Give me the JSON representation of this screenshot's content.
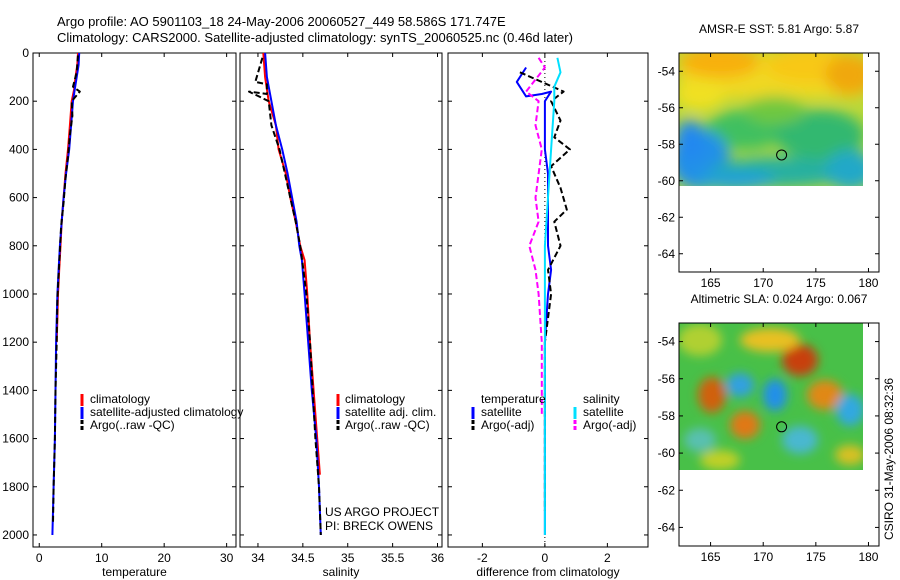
{
  "header": {
    "line1": "Argo profile: AO 5901103_18 24-May-2006 20060527_449 58.586S 171.747E",
    "line2": "Climatology: CARS2000. Satellite-adjusted climatology: synTS_20060525.nc (0.46d later)"
  },
  "credit": "CSIRO 31-May-2006 08:32:36",
  "colors": {
    "climatology": "#ff0000",
    "satellite": "#0000ff",
    "argo": "#000000",
    "salinity_satellite": "#00e0ff",
    "salinity_argo": "#ff00ff"
  },
  "chart_data": [
    {
      "type": "line",
      "panel": "temperature",
      "xlabel": "temperature",
      "ylabel": "",
      "xlim": [
        -1,
        31.5
      ],
      "ylim": [
        2050,
        0
      ],
      "xticks": [
        0,
        10,
        20,
        30
      ],
      "yticks": [
        0,
        200,
        400,
        600,
        800,
        1000,
        1200,
        1400,
        1600,
        1800,
        2000
      ],
      "legend": [
        "climatology",
        "satellite-adjusted climatology",
        "Argo(..raw -QC)"
      ],
      "series": [
        {
          "name": "climatology",
          "color": "#ff0000",
          "points": [
            [
              6.2,
              0
            ],
            [
              6.1,
              50
            ],
            [
              5.8,
              100
            ],
            [
              5.6,
              150
            ],
            [
              5.2,
              200
            ],
            [
              4.9,
              300
            ],
            [
              4.6,
              400
            ],
            [
              4.2,
              500
            ],
            [
              3.9,
              600
            ],
            [
              3.6,
              700
            ],
            [
              3.4,
              800
            ],
            [
              3.2,
              900
            ],
            [
              3.0,
              1000
            ],
            [
              2.9,
              1100
            ],
            [
              2.8,
              1200
            ]
          ]
        },
        {
          "name": "satellite-adjusted climatology",
          "color": "#0000ff",
          "points": [
            [
              6.4,
              0
            ],
            [
              6.3,
              50
            ],
            [
              6.0,
              100
            ],
            [
              5.7,
              150
            ],
            [
              5.4,
              200
            ],
            [
              5.1,
              300
            ],
            [
              4.8,
              400
            ],
            [
              4.3,
              500
            ],
            [
              3.9,
              600
            ],
            [
              3.6,
              700
            ],
            [
              3.3,
              800
            ],
            [
              3.1,
              900
            ],
            [
              2.9,
              1000
            ],
            [
              2.7,
              1200
            ],
            [
              2.6,
              1400
            ],
            [
              2.5,
              1600
            ],
            [
              2.3,
              1800
            ],
            [
              2.2,
              1900
            ],
            [
              2.1,
              2000
            ]
          ]
        },
        {
          "name": "Argo(..raw -QC)",
          "color": "#000000",
          "dashed": true,
          "points": [
            [
              6.2,
              10
            ],
            [
              6.0,
              80
            ],
            [
              5.4,
              140
            ],
            [
              6.5,
              160
            ],
            [
              5.2,
              200
            ],
            [
              5.3,
              260
            ],
            [
              4.9,
              340
            ],
            [
              4.6,
              430
            ],
            [
              4.2,
              520
            ],
            [
              3.9,
              620
            ],
            [
              3.5,
              720
            ],
            [
              3.3,
              820
            ],
            [
              3.1,
              920
            ],
            [
              2.9,
              1020
            ],
            [
              2.8,
              1200
            ],
            [
              2.6,
              1400
            ],
            [
              2.5,
              1600
            ],
            [
              2.3,
              1800
            ],
            [
              2.2,
              1950
            ]
          ]
        }
      ]
    },
    {
      "type": "line",
      "panel": "salinity",
      "xlabel": "salinity",
      "ylabel": "",
      "xlim": [
        33.8,
        36.05
      ],
      "ylim": [
        2050,
        0
      ],
      "xticks": [
        34,
        34.5,
        35,
        35.5,
        36
      ],
      "xticklabels": [
        "34",
        "34.5",
        "35",
        "35.5",
        "36"
      ],
      "legend": [
        "climatology",
        "satellite adj. clim.",
        "Argo(..raw -QC)"
      ],
      "series": [
        {
          "name": "climatology",
          "color": "#ff0000",
          "points": [
            [
              34.06,
              0
            ],
            [
              34.08,
              100
            ],
            [
              34.12,
              200
            ],
            [
              34.2,
              300
            ],
            [
              34.23,
              400
            ],
            [
              34.31,
              500
            ],
            [
              34.36,
              600
            ],
            [
              34.42,
              700
            ],
            [
              34.47,
              800
            ],
            [
              34.52,
              860
            ],
            [
              34.55,
              1000
            ],
            [
              34.58,
              1200
            ],
            [
              34.62,
              1400
            ],
            [
              34.66,
              1600
            ],
            [
              34.69,
              1750
            ]
          ]
        },
        {
          "name": "satellite adj. clim.",
          "color": "#0000ff",
          "points": [
            [
              34.08,
              0
            ],
            [
              34.1,
              100
            ],
            [
              34.15,
              200
            ],
            [
              34.2,
              300
            ],
            [
              34.27,
              400
            ],
            [
              34.33,
              500
            ],
            [
              34.38,
              600
            ],
            [
              34.43,
              700
            ],
            [
              34.46,
              800
            ],
            [
              34.49,
              860
            ],
            [
              34.52,
              1000
            ],
            [
              34.56,
              1200
            ],
            [
              34.6,
              1400
            ],
            [
              34.65,
              1600
            ],
            [
              34.68,
              1800
            ],
            [
              34.7,
              2000
            ]
          ]
        },
        {
          "name": "Argo(..raw -QC)",
          "color": "#000000",
          "dashed": true,
          "points": [
            [
              34.05,
              20
            ],
            [
              33.97,
              120
            ],
            [
              34.1,
              130
            ],
            [
              34.1,
              170
            ],
            [
              33.9,
              160
            ],
            [
              34.12,
              200
            ],
            [
              34.15,
              300
            ],
            [
              34.24,
              400
            ],
            [
              34.3,
              500
            ],
            [
              34.36,
              600
            ],
            [
              34.42,
              700
            ],
            [
              34.47,
              800
            ],
            [
              34.5,
              880
            ],
            [
              34.54,
              1000
            ],
            [
              34.58,
              1200
            ],
            [
              34.61,
              1400
            ],
            [
              34.64,
              1600
            ],
            [
              34.68,
              1800
            ],
            [
              34.7,
              2000
            ]
          ]
        }
      ]
    },
    {
      "type": "line",
      "panel": "difference",
      "xlabel": "difference from climatology",
      "ylabel": "",
      "xlim": [
        -3.1,
        3.3
      ],
      "ylim": [
        2050,
        0
      ],
      "xticks": [
        -2,
        0,
        2
      ],
      "legend_headers": [
        "temperature",
        "salinity"
      ],
      "legend": [
        "satellite",
        "Argo(-adj)",
        "satellite",
        "Argo(-adj)"
      ],
      "series": [
        {
          "name": "satellite",
          "group": "temperature",
          "color": "#0000ff",
          "points": [
            [
              -0.6,
              60
            ],
            [
              -0.9,
              120
            ],
            [
              -0.6,
              180
            ],
            [
              -0.1,
              170
            ],
            [
              0.2,
              160
            ],
            [
              0.0,
              200
            ],
            [
              0.0,
              400
            ],
            [
              0.1,
              500
            ],
            [
              0.1,
              700
            ],
            [
              0.1,
              800
            ],
            [
              0.2,
              900
            ],
            [
              0.1,
              1000
            ],
            [
              0.0,
              1200
            ],
            [
              0.0,
              1600
            ],
            [
              0.0,
              2000
            ]
          ]
        },
        {
          "name": "Argo(-adj)",
          "group": "temperature",
          "color": "#000000",
          "dashed": true,
          "points": [
            [
              -0.8,
              80
            ],
            [
              0.6,
              160
            ],
            [
              0.2,
              200
            ],
            [
              0.5,
              280
            ],
            [
              0.3,
              350
            ],
            [
              0.8,
              400
            ],
            [
              0.2,
              470
            ],
            [
              0.5,
              560
            ],
            [
              0.7,
              650
            ],
            [
              0.3,
              700
            ],
            [
              0.5,
              800
            ],
            [
              0.1,
              900
            ],
            [
              0.2,
              1000
            ],
            [
              0.0,
              1200
            ],
            [
              0.0,
              1600
            ],
            [
              0.0,
              1900
            ]
          ]
        },
        {
          "name": "satellite",
          "group": "salinity",
          "color": "#00e0ff",
          "points": [
            [
              0.4,
              20
            ],
            [
              0.5,
              80
            ],
            [
              0.3,
              140
            ],
            [
              0.3,
              200
            ],
            [
              0.2,
              400
            ],
            [
              0.1,
              600
            ],
            [
              0.0,
              800
            ],
            [
              0.0,
              1000
            ],
            [
              0.0,
              1400
            ],
            [
              0.0,
              2000
            ]
          ]
        },
        {
          "name": "Argo(-adj)",
          "group": "salinity",
          "color": "#ff00ff",
          "dashed": true,
          "points": [
            [
              -0.2,
              20
            ],
            [
              0.0,
              60
            ],
            [
              -0.6,
              160
            ],
            [
              -0.2,
              200
            ],
            [
              -0.3,
              300
            ],
            [
              -0.1,
              400
            ],
            [
              -0.3,
              600
            ],
            [
              -0.2,
              700
            ],
            [
              -0.5,
              800
            ],
            [
              -0.3,
              900
            ],
            [
              -0.2,
              1000
            ],
            [
              -0.1,
              1200
            ],
            [
              -0.1,
              1500
            ]
          ]
        }
      ]
    },
    {
      "type": "heatmap",
      "panel": "sst-map",
      "title": "AMSR-E SST: 5.81 Argo: 5.87",
      "xlim": [
        162,
        181
      ],
      "ylim": [
        -65,
        -53
      ],
      "xticks": [
        165,
        170,
        175,
        180
      ],
      "yticks": [
        -54,
        -56,
        -58,
        -60,
        -62,
        -64
      ],
      "data_extent": [
        [
          162,
          180
        ],
        [
          -60,
          -53.2
        ]
      ],
      "argo_position": [
        171.747,
        -58.586
      ]
    },
    {
      "type": "heatmap",
      "panel": "sla-map",
      "title": "Altimetric SLA: 0.024 Argo: 0.067",
      "xlim": [
        162,
        181
      ],
      "ylim": [
        -65,
        -53
      ],
      "xticks": [
        165,
        170,
        175,
        180
      ],
      "yticks": [
        -54,
        -56,
        -58,
        -60,
        -62,
        -64
      ],
      "data_extent": [
        [
          162,
          180
        ],
        [
          -60,
          -53.2
        ]
      ],
      "argo_position": [
        171.747,
        -58.586
      ]
    }
  ],
  "annotations": {
    "project": "US ARGO PROJECT",
    "pi": "PI: BRECK OWENS"
  }
}
